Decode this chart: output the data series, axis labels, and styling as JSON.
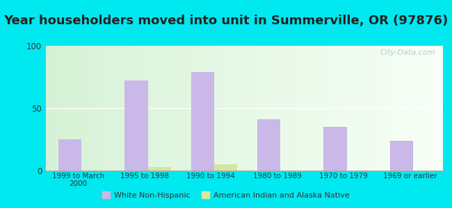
{
  "title": "Year householders moved into unit in Summerville, OR (97876)",
  "categories": [
    "1999 to March\n2000",
    "1995 to 1998",
    "1990 to 1994",
    "1980 to 1989",
    "1970 to 1979",
    "1969 or earlier"
  ],
  "white_non_hispanic": [
    25,
    72,
    79,
    41,
    35,
    24
  ],
  "american_indian": [
    0,
    3,
    5,
    0,
    0,
    0
  ],
  "bar_color_white": "#c9b8e8",
  "bar_color_indian": "#d4e6a0",
  "background_outer": "#00e8f0",
  "ylim": [
    0,
    100
  ],
  "yticks": [
    0,
    50,
    100
  ],
  "title_fontsize": 13,
  "watermark": "City-Data.com",
  "legend_label_white": "White Non-Hispanic",
  "legend_label_indian": "American Indian and Alaska Native"
}
